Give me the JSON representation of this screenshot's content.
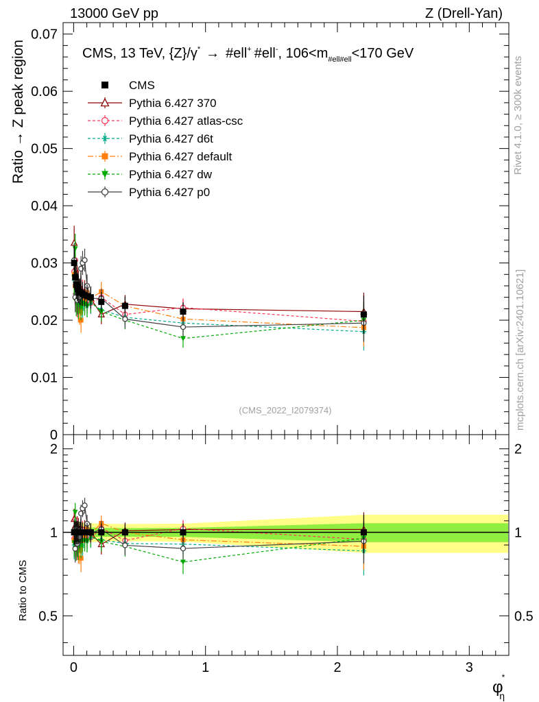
{
  "header": {
    "left": "13000 GeV pp",
    "right": "Z (Drell-Yan)"
  },
  "side": {
    "rivet": "Rivet 4.1.0, ≥ 300k events",
    "mcplots": "mcplots.cern.ch [arXiv:2401.10621]"
  },
  "watermark": "(CMS_2022_I2079374)",
  "colors": {
    "cms": "#000000",
    "p370": "#8b0000",
    "atlas": "#ff3355",
    "d6t": "#00aa88",
    "default": "#ff7f0e",
    "dw": "#00aa00",
    "p0": "#404040",
    "band_inner": "#90ee40",
    "band_outer": "#ffff88"
  },
  "chart_data": {
    "type": "scatter",
    "title_parts": {
      "a": "CMS, 13 TeV, {Z}/γ",
      "sup1": "*",
      "arrow": "→",
      "b": "#ell",
      "sup2": "+",
      "c": "#ell",
      "sup3": "-",
      "d": ", 106<m",
      "sub": "#ell#ell",
      "e": "<170 GeV"
    },
    "xlabel": "φ",
    "xlabel_sup": "*",
    "xlabel_sub": "η",
    "ylabel_main": "Ratio → Z peak region",
    "ylabel_ratio": "Ratio to CMS",
    "xlim": [
      -0.08,
      3.3
    ],
    "ylim_main": [
      0,
      0.072
    ],
    "ylim_ratio": [
      0.36,
      2.25
    ],
    "x_ticks": [
      0,
      1,
      2,
      3
    ],
    "x_tick_labels": [
      "0",
      "1",
      "2",
      "3"
    ],
    "y_ticks_main": [
      0,
      0.01,
      0.02,
      0.03,
      0.04,
      0.05,
      0.06,
      0.07
    ],
    "y_tick_labels_main": [
      "0",
      "0.01",
      "0.02",
      "0.03",
      "0.04",
      "0.05",
      "0.06",
      "0.07"
    ],
    "y_ticks_ratio": [
      0.5,
      1,
      2
    ],
    "y_tick_labels_ratio": [
      "0.5",
      "1",
      "2"
    ],
    "x": [
      0.004,
      0.012,
      0.02,
      0.028,
      0.036,
      0.046,
      0.056,
      0.068,
      0.084,
      0.102,
      0.13,
      0.21,
      0.39,
      0.83,
      2.2
    ],
    "series": [
      {
        "key": "cms",
        "name": "CMS",
        "marker": "square-filled",
        "dash": "",
        "values": [
          0.03,
          0.0275,
          0.0262,
          0.0258,
          0.0254,
          0.025,
          0.0248,
          0.0246,
          0.0244,
          0.0242,
          0.024,
          0.0232,
          0.0225,
          0.0215,
          0.021
        ]
      },
      {
        "key": "p370",
        "name": "Pythia 6.427 370",
        "marker": "triangle-open",
        "dash": "",
        "values": [
          0.0335,
          0.029,
          0.025,
          0.027,
          0.0262,
          0.024,
          0.0255,
          0.0238,
          0.025,
          0.0232,
          0.0238,
          0.021,
          0.0228,
          0.022,
          0.0215
        ]
      },
      {
        "key": "atlas",
        "name": "Pythia 6.427 atlas-csc",
        "marker": "circle-open",
        "dash": "4,3",
        "values": [
          0.0285,
          0.0305,
          0.024,
          0.023,
          0.0258,
          0.0245,
          0.0238,
          0.025,
          0.024,
          0.0235,
          0.023,
          0.024,
          0.021,
          0.0222,
          0.0198
        ]
      },
      {
        "key": "d6t",
        "name": "Pythia 6.427 d6t",
        "marker": "star",
        "dash": "4,3",
        "values": [
          0.027,
          0.0262,
          0.0245,
          0.025,
          0.023,
          0.024,
          0.0236,
          0.022,
          0.0232,
          0.0225,
          0.023,
          0.0218,
          0.0205,
          0.0195,
          0.018
        ]
      },
      {
        "key": "default",
        "name": "Pythia 6.427 default",
        "marker": "square-filled",
        "dash": "8,3,2,3",
        "values": [
          0.028,
          0.026,
          0.0238,
          0.0248,
          0.022,
          0.0215,
          0.02,
          0.023,
          0.0235,
          0.0248,
          0.0238,
          0.025,
          0.0225,
          0.0202,
          0.0187
        ]
      },
      {
        "key": "dw",
        "name": "Pythia 6.427 dw",
        "marker": "triangle-down-filled",
        "dash": "4,3",
        "values": [
          0.0275,
          0.0325,
          0.0232,
          0.0238,
          0.0226,
          0.0235,
          0.0222,
          0.023,
          0.0228,
          0.0225,
          0.0232,
          0.0215,
          0.02,
          0.0168,
          0.02
        ]
      },
      {
        "key": "p0",
        "name": "Pythia 6.427 p0",
        "marker": "circle-open",
        "dash": "",
        "values": [
          0.0305,
          0.024,
          0.027,
          0.0235,
          0.0258,
          0.024,
          0.029,
          0.03,
          0.0305,
          0.026,
          0.0238,
          0.0238,
          0.0202,
          0.0188,
          0.0195
        ]
      }
    ],
    "errors": [
      0.003,
      0.0026,
      0.0025,
      0.0025,
      0.0024,
      0.0023,
      0.0022,
      0.0021,
      0.002,
      0.002,
      0.0019,
      0.0017,
      0.0016,
      0.0016,
      0.0033
    ]
  }
}
